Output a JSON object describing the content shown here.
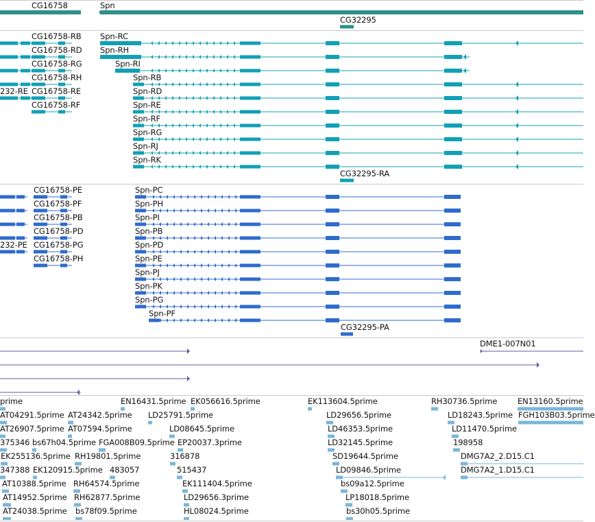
{
  "colors": {
    "gene_track": "#2f8f8a",
    "transcript": "#11a0b5",
    "protein": "#2f6bcc",
    "clone": "#6b55a8",
    "est": "#7ab6d8",
    "separator": "#c9c9c9"
  },
  "gene_track": {
    "items": [
      {
        "id": "g1",
        "label": "CG16758"
      },
      {
        "id": "g2",
        "label": "Spn"
      },
      {
        "id": "g3",
        "label": "CG32295"
      }
    ]
  },
  "transcript_track": {
    "items": [
      {
        "id": "t1",
        "label": "CG16758-RB"
      },
      {
        "id": "t2",
        "label": "CG16758-RD"
      },
      {
        "id": "t3",
        "label": "CG16758-RG"
      },
      {
        "id": "t4",
        "label": "CG16758-RH"
      },
      {
        "id": "t5",
        "label": "CG16758-RE"
      },
      {
        "id": "t6",
        "label": "CG16758-RF"
      },
      {
        "id": "t7",
        "label": "232-RE"
      },
      {
        "id": "t8",
        "label": "Spn-RC"
      },
      {
        "id": "t9",
        "label": "Spn-RH"
      },
      {
        "id": "t10",
        "label": "Spn-RI"
      },
      {
        "id": "t11",
        "label": "Spn-RB"
      },
      {
        "id": "t12",
        "label": "Spn-RD"
      },
      {
        "id": "t13",
        "label": "Spn-RE"
      },
      {
        "id": "t14",
        "label": "Spn-RF"
      },
      {
        "id": "t15",
        "label": "Spn-RG"
      },
      {
        "id": "t16",
        "label": "Spn-RJ"
      },
      {
        "id": "t17",
        "label": "Spn-RK"
      },
      {
        "id": "t18",
        "label": "CG32295-RA"
      }
    ]
  },
  "protein_track": {
    "items": [
      {
        "id": "p1",
        "label": "CG16758-PE"
      },
      {
        "id": "p2",
        "label": "CG16758-PF"
      },
      {
        "id": "p3",
        "label": "CG16758-PB"
      },
      {
        "id": "p4",
        "label": "CG16758-PD"
      },
      {
        "id": "p5",
        "label": "CG16758-PG"
      },
      {
        "id": "p6",
        "label": "CG16758-PH"
      },
      {
        "id": "p7",
        "label": "232-PE"
      },
      {
        "id": "p8",
        "label": "Spn-PC"
      },
      {
        "id": "p9",
        "label": "Spn-PH"
      },
      {
        "id": "p10",
        "label": "Spn-PI"
      },
      {
        "id": "p11",
        "label": "Spn-PB"
      },
      {
        "id": "p12",
        "label": "Spn-PD"
      },
      {
        "id": "p13",
        "label": "Spn-PE"
      },
      {
        "id": "p14",
        "label": "Spn-PJ"
      },
      {
        "id": "p15",
        "label": "Spn-PK"
      },
      {
        "id": "p16",
        "label": "Spn-PG"
      },
      {
        "id": "p17",
        "label": "Spn-PF"
      },
      {
        "id": "p18",
        "label": "CG32295-PA"
      }
    ]
  },
  "clone_track": {
    "items": [
      {
        "id": "c1",
        "label": "DME1-007N01"
      }
    ]
  },
  "est_track": {
    "items": [
      {
        "id": "e1",
        "label": "prime"
      },
      {
        "id": "e2",
        "label": "EN16431.5prime"
      },
      {
        "id": "e3",
        "label": "EK056616.5prime"
      },
      {
        "id": "e4",
        "label": "EK113604.5prime"
      },
      {
        "id": "e5",
        "label": "RH30736.5prime"
      },
      {
        "id": "e6",
        "label": "EN13160.5prime"
      },
      {
        "id": "e7",
        "label": "AT04291.5prime"
      },
      {
        "id": "e8",
        "label": "AT24342.5prime"
      },
      {
        "id": "e9",
        "label": "LD25791.5prime"
      },
      {
        "id": "e10",
        "label": "LD29656.5prime"
      },
      {
        "id": "e11",
        "label": "LD18243.5prime"
      },
      {
        "id": "e12",
        "label": "FGH103B03.5prime"
      },
      {
        "id": "e13",
        "label": "AT26907.5prime"
      },
      {
        "id": "e14",
        "label": "AT07594.5prime"
      },
      {
        "id": "e15",
        "label": "LD08645.5prime"
      },
      {
        "id": "e16",
        "label": "LD46353.5prime"
      },
      {
        "id": "e17",
        "label": "LD11470.5prime"
      },
      {
        "id": "e18",
        "label": "375346"
      },
      {
        "id": "e19",
        "label": "bs67h04.5prime"
      },
      {
        "id": "e20",
        "label": "FGA008B09.5prime"
      },
      {
        "id": "e21",
        "label": "EP20037.3prime"
      },
      {
        "id": "e22",
        "label": "LD32145.5prime"
      },
      {
        "id": "e23",
        "label": "198958"
      },
      {
        "id": "e24",
        "label": "EK255136.5prime"
      },
      {
        "id": "e25",
        "label": "RH19801.5prime"
      },
      {
        "id": "e26",
        "label": "316878"
      },
      {
        "id": "e27",
        "label": "SD19644.5prime"
      },
      {
        "id": "e28",
        "label": "DMG7A2_2.D15.C1"
      },
      {
        "id": "e29",
        "label": "347388"
      },
      {
        "id": "e30",
        "label": "EK120915.5prime"
      },
      {
        "id": "e31",
        "label": "483057"
      },
      {
        "id": "e32",
        "label": "515437"
      },
      {
        "id": "e33",
        "label": "LD09846.5prime"
      },
      {
        "id": "e34",
        "label": "DMG7A2_1.D15.C1"
      },
      {
        "id": "e35",
        "label": "AT10388.5prime"
      },
      {
        "id": "e36",
        "label": "RH64574.5prime"
      },
      {
        "id": "e37",
        "label": "EK111404.5prime"
      },
      {
        "id": "e38",
        "label": "bs09a12.5prime"
      },
      {
        "id": "e39",
        "label": "AT14952.5prime"
      },
      {
        "id": "e40",
        "label": "RH62877.5prime"
      },
      {
        "id": "e41",
        "label": "LD29656.3prime"
      },
      {
        "id": "e42",
        "label": "LP18018.5prime"
      },
      {
        "id": "e43",
        "label": "AT24038.5prime"
      },
      {
        "id": "e44",
        "label": "bs78f09.5prime"
      },
      {
        "id": "e45",
        "label": "HL08024.5prime"
      },
      {
        "id": "e46",
        "label": "bs30h05.5prime"
      }
    ]
  }
}
